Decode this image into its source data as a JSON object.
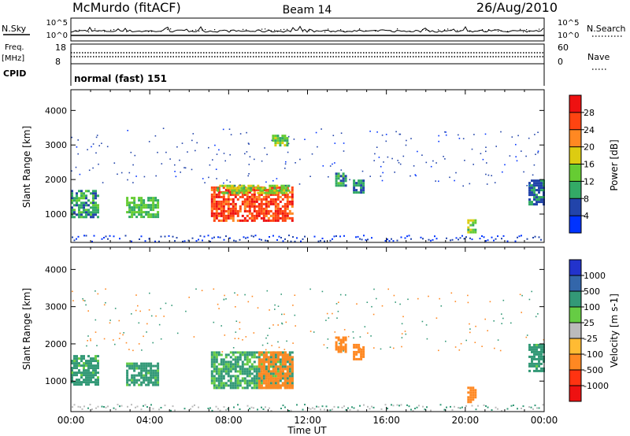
{
  "header": {
    "station": "McMurdo (fitACF)",
    "beam": "Beam 14",
    "date": "26/Aug/2010"
  },
  "top_panels": {
    "nsky_label": "N.Sky",
    "nsearch_label": "N.Search",
    "nsky_ticks": [
      "10^5",
      "10^0"
    ],
    "nsearch_ticks": [
      "10^5",
      "10^0"
    ],
    "freq_label": "Freq.",
    "freq_unit": "[MHz]",
    "freq_ticks": [
      "18",
      "8"
    ],
    "nave_label": "Nave",
    "nave_ticks": [
      "60",
      "0"
    ],
    "cpid_label": "CPID",
    "cpid_value": "normal (fast) 151"
  },
  "x_axis": {
    "label": "Time UT",
    "ticks": [
      "00:00",
      "04:00",
      "08:00",
      "12:00",
      "16:00",
      "20:00",
      "00:00"
    ]
  },
  "power_panel": {
    "ylabel": "Slant Range [km]",
    "yticks": [
      "1000",
      "2000",
      "3000",
      "4000"
    ],
    "colorbar_label": "Power [dB]",
    "colorbar_ticks": [
      "4",
      "8",
      "12",
      "16",
      "20",
      "24",
      "28"
    ],
    "colors": [
      "#0033ff",
      "#2244aa",
      "#33aa66",
      "#66cc33",
      "#ddcc11",
      "#ff8822",
      "#ff4411",
      "#ee1111"
    ]
  },
  "velocity_panel": {
    "ylabel": "Slant Range [km]",
    "yticks": [
      "1000",
      "2000",
      "3000",
      "4000"
    ],
    "colorbar_label": "Velocity [m s-1]",
    "colorbar_ticks": [
      "1000",
      "500",
      "100",
      "25",
      "-25",
      "-100",
      "-500",
      "-1000"
    ],
    "colors": [
      "#2233cc",
      "#3366aa",
      "#339977",
      "#66cc44",
      "#bbbbbb",
      "#ffbb33",
      "#ff8822",
      "#ff3311",
      "#ee1111"
    ]
  },
  "chart_data": [
    {
      "type": "heatmap",
      "title": "Beam 14",
      "xlabel": "Time UT",
      "ylabel": "Slant Range [km]",
      "colorbar": "Power [dB]",
      "x_range_hours": [
        0,
        24
      ],
      "y_range_km": [
        180,
        4600
      ],
      "clim": [
        0,
        30
      ],
      "regions": [
        {
          "t0": 0.0,
          "t1": 1.4,
          "r0": 900,
          "r1": 1700,
          "value": 10
        },
        {
          "t0": 2.8,
          "t1": 4.4,
          "r0": 900,
          "r1": 1500,
          "value": 12
        },
        {
          "t0": 7.1,
          "t1": 11.2,
          "r0": 800,
          "r1": 1800,
          "value": 26
        },
        {
          "t0": 7.4,
          "t1": 11.0,
          "r0": 1600,
          "r1": 1850,
          "value": 15
        },
        {
          "t0": 10.2,
          "t1": 11.0,
          "r0": 3000,
          "r1": 3300,
          "value": 14
        },
        {
          "t0": 13.4,
          "t1": 13.9,
          "r0": 1800,
          "r1": 2200,
          "value": 9
        },
        {
          "t0": 14.3,
          "t1": 14.8,
          "r0": 1600,
          "r1": 2000,
          "value": 8
        },
        {
          "t0": 20.1,
          "t1": 20.5,
          "r0": 450,
          "r1": 850,
          "value": 14
        },
        {
          "t0": 23.2,
          "t1": 24.0,
          "r0": 1300,
          "r1": 2000,
          "value": 8
        }
      ]
    },
    {
      "type": "heatmap",
      "title": "Beam 14",
      "xlabel": "Time UT",
      "ylabel": "Slant Range [km]",
      "colorbar": "Velocity [m s-1]",
      "x_range_hours": [
        0,
        24
      ],
      "y_range_km": [
        180,
        4600
      ],
      "clim": [
        -1000,
        1000
      ],
      "regions": [
        {
          "t0": 0.0,
          "t1": 1.4,
          "r0": 900,
          "r1": 1700,
          "value": 150
        },
        {
          "t0": 2.8,
          "t1": 4.4,
          "r0": 900,
          "r1": 1500,
          "value": 150
        },
        {
          "t0": 7.1,
          "t1": 11.2,
          "r0": 800,
          "r1": 1800,
          "value": 120
        },
        {
          "t0": 9.5,
          "t1": 11.2,
          "r0": 800,
          "r1": 1800,
          "value": -200
        },
        {
          "t0": 13.4,
          "t1": 13.9,
          "r0": 1800,
          "r1": 2200,
          "value": -200
        },
        {
          "t0": 14.3,
          "t1": 14.8,
          "r0": 1600,
          "r1": 2000,
          "value": -200
        },
        {
          "t0": 20.1,
          "t1": 20.5,
          "r0": 450,
          "r1": 850,
          "value": -200
        },
        {
          "t0": 23.2,
          "t1": 24.0,
          "r0": 1300,
          "r1": 2000,
          "value": 150
        }
      ]
    }
  ]
}
